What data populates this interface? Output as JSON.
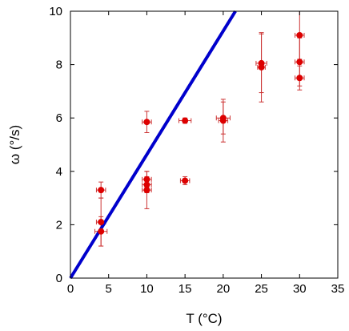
{
  "chart_data": {
    "type": "scatter",
    "xlabel": "T (°C)",
    "ylabel": "ω (°/s)",
    "xlim": [
      0,
      35
    ],
    "ylim": [
      0,
      10
    ],
    "xticks": [
      0,
      5,
      10,
      15,
      20,
      25,
      30,
      35
    ],
    "yticks": [
      0,
      2,
      4,
      6,
      8,
      10
    ],
    "grid": false,
    "legend": "none",
    "colors": {
      "points": "#dd0000",
      "errorbars": "#cc3333",
      "line": "#0000cc",
      "axes": "#000000"
    },
    "points": [
      {
        "x": 4,
        "y": 3.3,
        "xerr": 0.6,
        "yerr": 0.3
      },
      {
        "x": 4,
        "y": 2.1,
        "xerr": 0.6,
        "yerr": 0.9
      },
      {
        "x": 4,
        "y": 1.75,
        "xerr": 0.8,
        "yerr": 0.55
      },
      {
        "x": 10,
        "y": 5.85,
        "xerr": 0.6,
        "yerr": 0.4
      },
      {
        "x": 10,
        "y": 3.7,
        "xerr": 0.6,
        "yerr": 0.3
      },
      {
        "x": 10,
        "y": 3.5,
        "xerr": 0.6,
        "yerr": 0.3
      },
      {
        "x": 10,
        "y": 3.3,
        "xerr": 0.6,
        "yerr": 0.7
      },
      {
        "x": 15,
        "y": 5.9,
        "xerr": 0.8,
        "yerr": 0.1
      },
      {
        "x": 15,
        "y": 3.65,
        "xerr": 0.6,
        "yerr": 0.15
      },
      {
        "x": 20,
        "y": 6.0,
        "xerr": 0.9,
        "yerr": 0.6
      },
      {
        "x": 20,
        "y": 5.9,
        "xerr": 0.6,
        "yerr": 0.8
      },
      {
        "x": 25,
        "y": 8.05,
        "xerr": 0.7,
        "yerr": 1.1
      },
      {
        "x": 25,
        "y": 7.9,
        "xerr": 0.5,
        "yerr": 1.3
      },
      {
        "x": 30,
        "y": 9.1,
        "xerr": 0.6,
        "yerr": 0.9
      },
      {
        "x": 30,
        "y": 8.1,
        "xerr": 0.6,
        "yerr": 0.9
      },
      {
        "x": 30,
        "y": 7.5,
        "xerr": 0.6,
        "yerr": 0.45
      }
    ],
    "fit_line": {
      "x": [
        0,
        21.6
      ],
      "y": [
        0,
        10
      ]
    }
  }
}
